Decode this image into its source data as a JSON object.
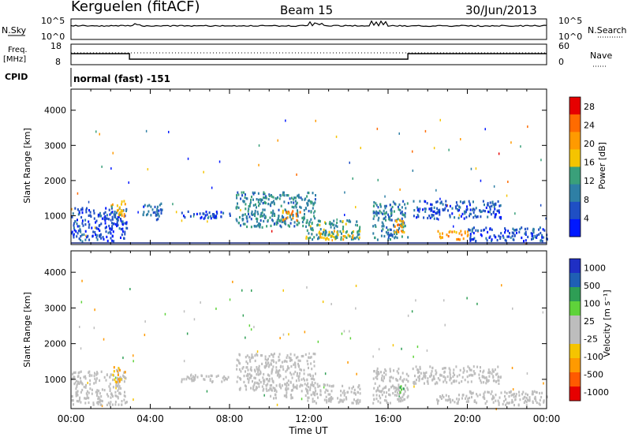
{
  "header": {
    "station": "Kerguelen (fitACF)",
    "beam": "Beam 15",
    "date": "30/Jun/2013"
  },
  "noise_panel": {
    "left_label": "N.Sky",
    "right_label": "N.Search",
    "tick_top": "10^5",
    "tick_bottom": "10^0",
    "right_tick_top": "10^5",
    "right_tick_bottom": "10^0"
  },
  "freq_panel": {
    "left_label": "Freq.",
    "left_unit": "[MHz]",
    "right_label": "Nave",
    "left_ticks": [
      "18",
      "8"
    ],
    "right_ticks": [
      "60",
      "0"
    ]
  },
  "cpid": {
    "label": "CPID",
    "program": "normal (fast) -151"
  },
  "colors": {
    "power_scale": [
      "#0018ff",
      "#1f4fc4",
      "#2e7fa5",
      "#3aa07a",
      "#f5c400",
      "#ff9a00",
      "#ff6b00",
      "#e60000"
    ],
    "velocity_scale": [
      "#e60000",
      "#ff5a00",
      "#ff9a00",
      "#f5c400",
      "#bdbdbd",
      "#bdbdbd",
      "#5fd33a",
      "#2e9e55",
      "#1f5fb4",
      "#1f2fc4"
    ]
  },
  "chart_data": [
    {
      "type": "heatmap",
      "panel": "power",
      "ylabel": "Slant Range [km]",
      "xlabel": "",
      "y_ticks": [
        "1000",
        "2000",
        "3000",
        "4000"
      ],
      "x_ticks": [
        "00:00",
        "04:00",
        "08:00",
        "12:00",
        "16:00",
        "20:00",
        "00:00"
      ],
      "xlim": [
        0,
        24
      ],
      "ylim": [
        180,
        4600
      ],
      "colorbar": {
        "label": "Power [dB]",
        "ticks": [
          "4",
          "8",
          "12",
          "16",
          "20",
          "24",
          "28"
        ],
        "range": [
          0,
          30
        ]
      },
      "regions": [
        {
          "t0": 0.0,
          "t1": 2.8,
          "r0": 300,
          "r1": 1250,
          "v": 6
        },
        {
          "t0": 2.0,
          "t1": 2.7,
          "r0": 950,
          "r1": 1450,
          "v": 18
        },
        {
          "t0": 3.6,
          "t1": 4.6,
          "r0": 900,
          "r1": 1400,
          "v": 7
        },
        {
          "t0": 5.5,
          "t1": 8.0,
          "r0": 950,
          "r1": 1150,
          "v": 5
        },
        {
          "t0": 8.3,
          "t1": 12.3,
          "r0": 700,
          "r1": 1700,
          "v": 10
        },
        {
          "t0": 10.6,
          "t1": 11.6,
          "r0": 900,
          "r1": 1200,
          "v": 22
        },
        {
          "t0": 11.8,
          "t1": 14.6,
          "r0": 350,
          "r1": 900,
          "v": 12
        },
        {
          "t0": 12.5,
          "t1": 14.2,
          "r0": 350,
          "r1": 600,
          "v": 18
        },
        {
          "t0": 15.2,
          "t1": 17.0,
          "r0": 350,
          "r1": 1450,
          "v": 9
        },
        {
          "t0": 16.3,
          "t1": 16.8,
          "r0": 550,
          "r1": 1000,
          "v": 20
        },
        {
          "t0": 17.2,
          "t1": 21.7,
          "r0": 950,
          "r1": 1450,
          "v": 6
        },
        {
          "t0": 18.4,
          "t1": 20.0,
          "r0": 350,
          "r1": 600,
          "v": 20
        },
        {
          "t0": 20.0,
          "t1": 24.0,
          "r0": 300,
          "r1": 700,
          "v": 5
        }
      ]
    },
    {
      "type": "heatmap",
      "panel": "velocity",
      "ylabel": "Slant Range [km]",
      "xlabel": "Time UT",
      "y_ticks": [
        "1000",
        "2000",
        "3000",
        "4000"
      ],
      "x_ticks": [
        "00:00",
        "04:00",
        "08:00",
        "12:00",
        "16:00",
        "20:00",
        "00:00"
      ],
      "xlim": [
        0,
        24
      ],
      "ylim": [
        180,
        4600
      ],
      "colorbar": {
        "label": "Velocity [m s⁻¹]",
        "ticks": [
          "1000",
          "500",
          "100",
          "25",
          "-25",
          "-100",
          "-500",
          "-1000"
        ],
        "range": [
          -1000,
          1000
        ]
      },
      "regions": [
        {
          "t0": 0.0,
          "t1": 2.8,
          "r0": 300,
          "r1": 1250,
          "v": -40
        },
        {
          "t0": 2.0,
          "t1": 2.7,
          "r0": 950,
          "r1": 1450,
          "v": -300
        },
        {
          "t0": 5.5,
          "t1": 8.0,
          "r0": 950,
          "r1": 1150,
          "v": -60
        },
        {
          "t0": 8.3,
          "t1": 12.3,
          "r0": 700,
          "r1": 1750,
          "v": 0
        },
        {
          "t0": 11.8,
          "t1": 14.6,
          "r0": 350,
          "r1": 900,
          "v": -80
        },
        {
          "t0": 10.0,
          "t1": 11.2,
          "r0": 500,
          "r1": 800,
          "v": 80
        },
        {
          "t0": 15.2,
          "t1": 17.0,
          "r0": 350,
          "r1": 1350,
          "v": 50
        },
        {
          "t0": 16.3,
          "t1": 16.8,
          "r0": 550,
          "r1": 900,
          "v": 300
        },
        {
          "t0": 17.2,
          "t1": 21.7,
          "r0": 900,
          "r1": 1400,
          "v": 0
        },
        {
          "t0": 18.4,
          "t1": 20.0,
          "r0": 350,
          "r1": 600,
          "v": 90
        },
        {
          "t0": 20.0,
          "t1": 24.0,
          "r0": 300,
          "r1": 700,
          "v": -40
        }
      ]
    }
  ]
}
